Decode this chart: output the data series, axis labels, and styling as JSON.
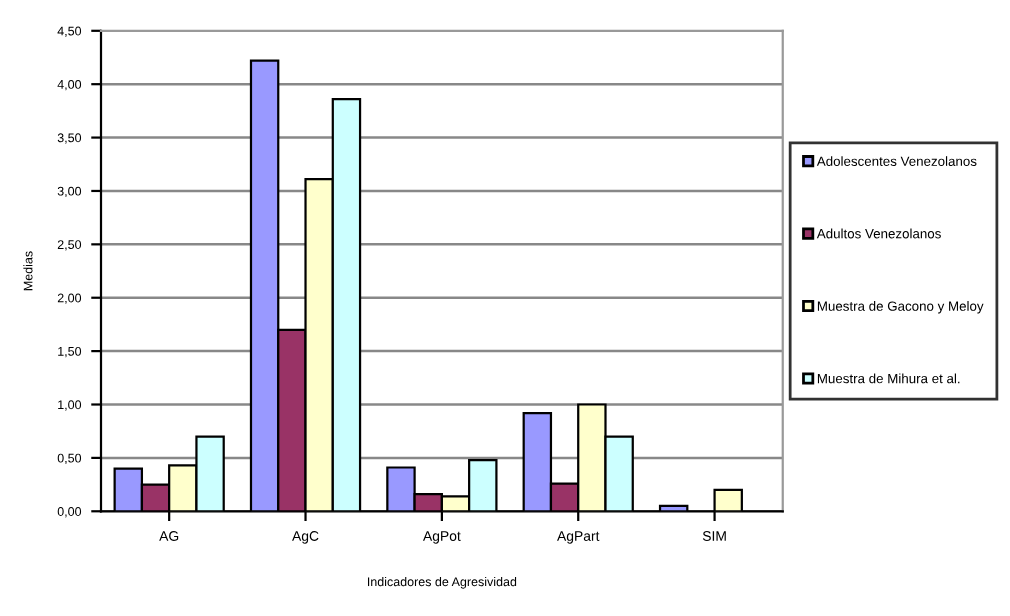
{
  "chart_data": {
    "type": "bar",
    "xlabel": "Indicadores de Agresividad",
    "ylabel": "Medias",
    "categories": [
      "AG",
      "AgC",
      "AgPot",
      "AgPart",
      "SIM"
    ],
    "series": [
      {
        "name": "Adolescentes Venezolanos",
        "color": "#9999ff",
        "values": [
          0.4,
          4.22,
          0.41,
          0.92,
          0.05
        ]
      },
      {
        "name": "Adultos Venezolanos",
        "color": "#993366",
        "values": [
          0.25,
          1.7,
          0.16,
          0.26,
          null
        ]
      },
      {
        "name": "Muestra de Gacono y Meloy",
        "color": "#ffffcc",
        "values": [
          0.43,
          3.11,
          0.14,
          1.0,
          0.2
        ]
      },
      {
        "name": "Muestra de Mihura et al.",
        "color": "#ccffff",
        "values": [
          0.7,
          3.86,
          0.48,
          0.7,
          null
        ]
      }
    ],
    "ylim": [
      0,
      4.5
    ],
    "yticks": [
      {
        "value": 0,
        "label": "0,00"
      },
      {
        "value": 0.5,
        "label": "0,50"
      },
      {
        "value": 1,
        "label": "1,00"
      },
      {
        "value": 1.5,
        "label": "1,50"
      },
      {
        "value": 2,
        "label": "2,00"
      },
      {
        "value": 2.5,
        "label": "2,50"
      },
      {
        "value": 3,
        "label": "3,00"
      },
      {
        "value": 3.5,
        "label": "3,50"
      },
      {
        "value": 4,
        "label": "4,00"
      },
      {
        "value": 4.5,
        "label": "4,50"
      }
    ],
    "grid": "y",
    "legend": "right"
  }
}
